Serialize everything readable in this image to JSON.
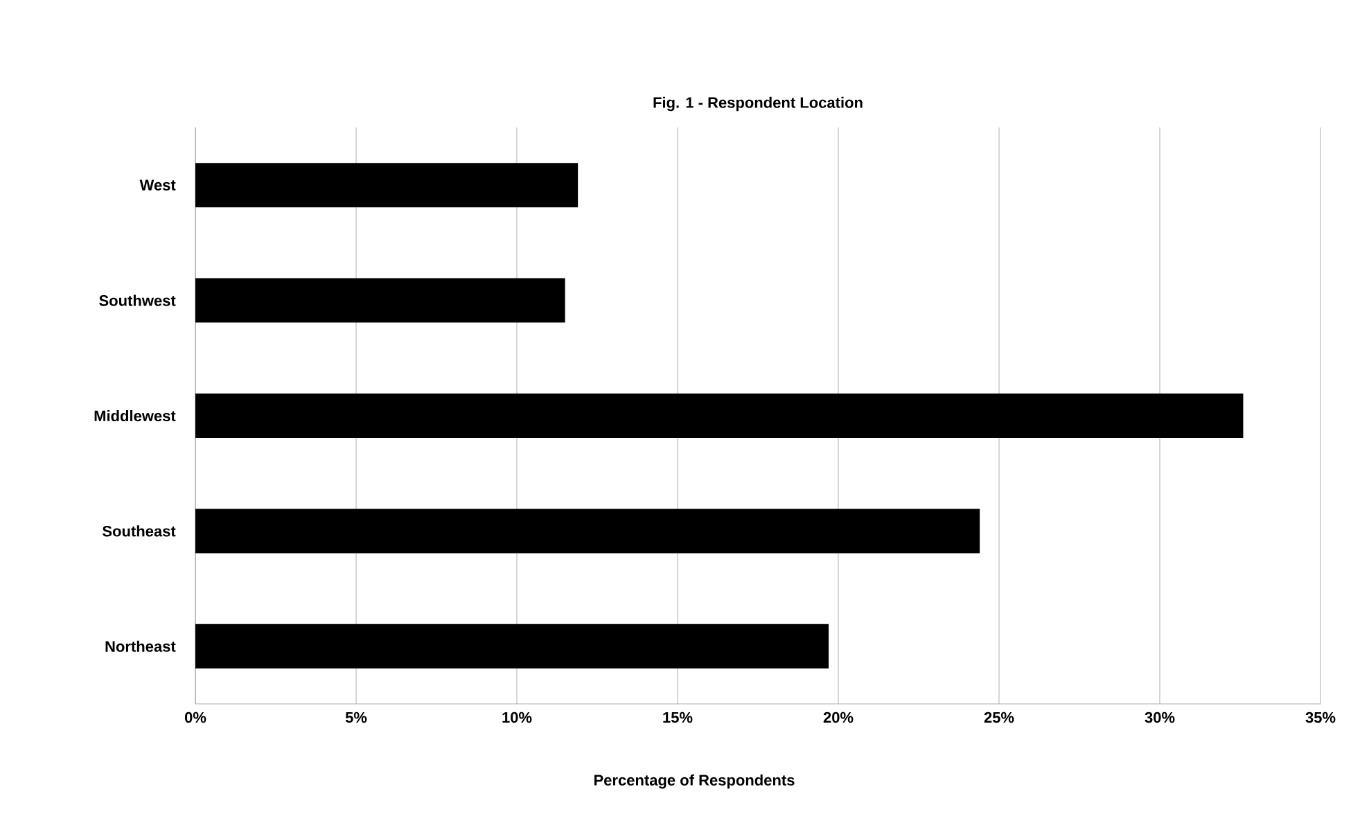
{
  "chart_data": {
    "type": "bar",
    "orientation": "horizontal",
    "title": "Fig. 1 -  Respondent Location",
    "xlabel": "Percentage of Respondents",
    "categories": [
      "West",
      "Southwest",
      "Middlewest",
      "Southeast",
      "Northeast"
    ],
    "series": [
      {
        "color": "#000000",
        "values": [
          11.9,
          11.5,
          32.6,
          24.4,
          19.7
        ]
      }
    ],
    "xlim": [
      0,
      35
    ],
    "xticks": [
      {
        "value": 0,
        "label": "0%"
      },
      {
        "value": 5,
        "label": "5%"
      },
      {
        "value": 10,
        "label": "10%"
      },
      {
        "value": 15,
        "label": "15%"
      },
      {
        "value": 20,
        "label": "20%"
      },
      {
        "value": 25,
        "label": "25%"
      },
      {
        "value": 30,
        "label": "30%"
      },
      {
        "value": 35,
        "label": "35%"
      }
    ],
    "grid": "x"
  }
}
